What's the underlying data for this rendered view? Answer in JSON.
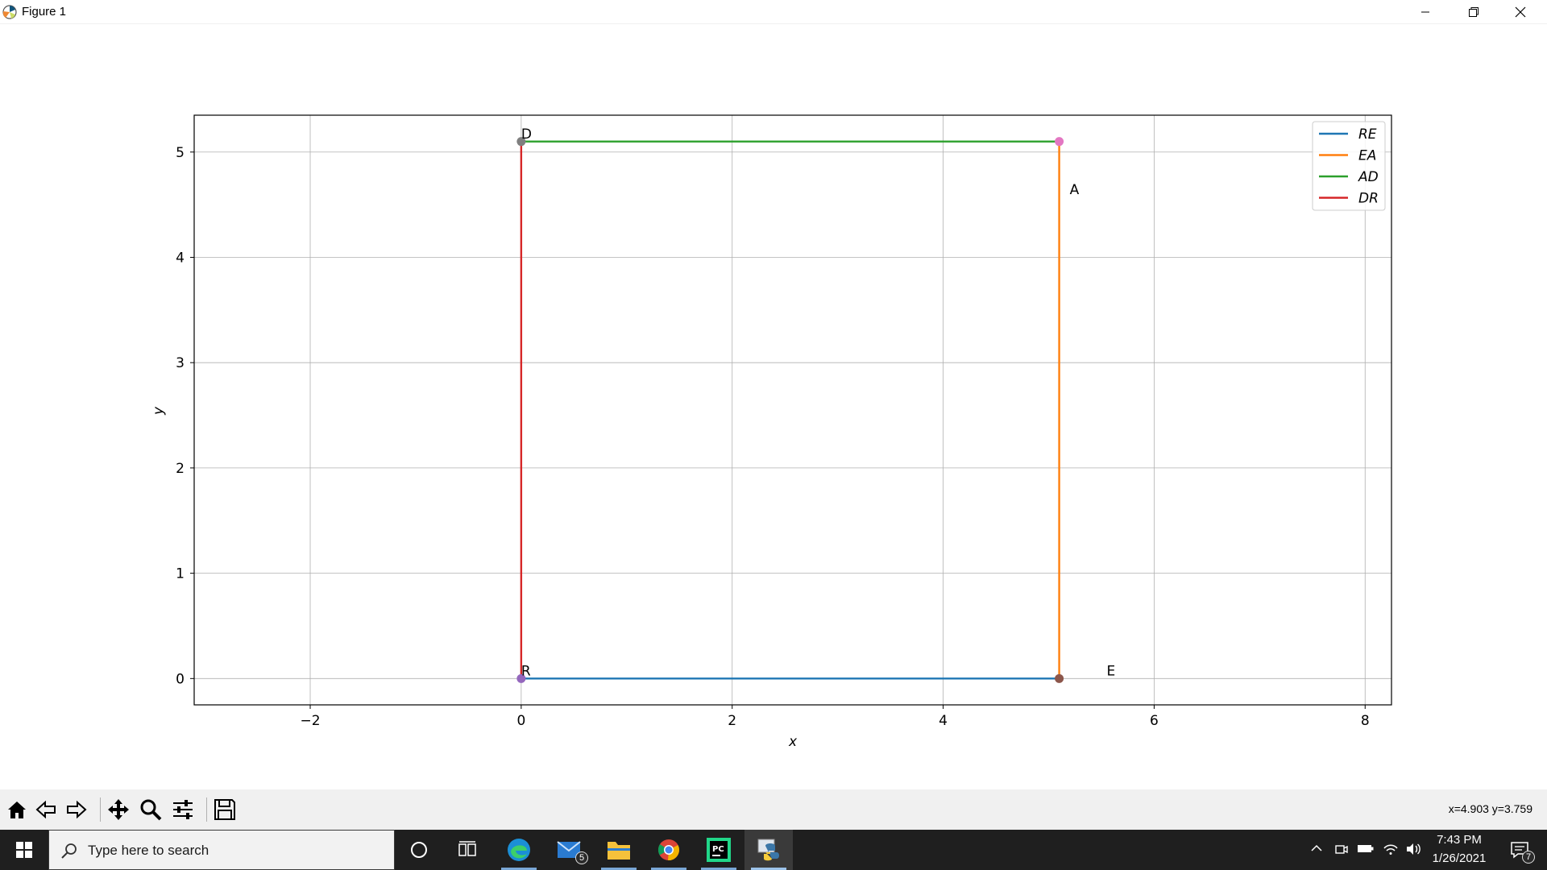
{
  "window": {
    "title": "Figure 1",
    "title_icon": "matplotlib-logo-icon",
    "controls": [
      "minimize-icon",
      "restore-icon",
      "close-icon"
    ]
  },
  "chart_data": {
    "type": "line",
    "xlabel": "x",
    "ylabel": "y",
    "xlim": [
      -3.1,
      8.25
    ],
    "ylim": [
      -0.25,
      5.35
    ],
    "xticks": [
      -2,
      0,
      2,
      4,
      6,
      8
    ],
    "yticks": [
      0,
      1,
      2,
      3,
      4,
      5
    ],
    "grid": true,
    "legend_position": "top-right",
    "series": [
      {
        "name": "RE",
        "color": "#1f77b4",
        "x": [
          0,
          5.1
        ],
        "y": [
          0,
          0
        ]
      },
      {
        "name": "EA",
        "color": "#ff7f0e",
        "x": [
          5.1,
          5.1
        ],
        "y": [
          0,
          5.1
        ]
      },
      {
        "name": "AD",
        "color": "#2ca02c",
        "x": [
          5.1,
          0
        ],
        "y": [
          5.1,
          5.1
        ]
      },
      {
        "name": "DR",
        "color": "#d62728",
        "x": [
          0,
          0
        ],
        "y": [
          5.1,
          0
        ]
      }
    ],
    "points": [
      {
        "x": 0,
        "y": 0,
        "color": "#9467bd"
      },
      {
        "x": 5.1,
        "y": 0,
        "color": "#8c564b"
      },
      {
        "x": 5.1,
        "y": 5.1,
        "color": "#e377c2"
      },
      {
        "x": 0,
        "y": 5.1,
        "color": "#7f7f7f"
      }
    ],
    "annotations": [
      {
        "text": "R",
        "x": 0.0,
        "y": 0.03
      },
      {
        "text": "E",
        "x": 5.55,
        "y": 0.03
      },
      {
        "text": "A",
        "x": 5.2,
        "y": 4.6
      },
      {
        "text": "D",
        "x": 0.0,
        "y": 5.13
      }
    ]
  },
  "toolbar": {
    "buttons": [
      "home-icon",
      "back-icon",
      "forward-icon",
      "pan-icon",
      "zoom-icon",
      "configure-subplots-icon",
      "save-icon"
    ],
    "coords": "x=4.903 y=3.759"
  },
  "taskbar": {
    "search_placeholder": "Type here to search",
    "apps": [
      "cortana-icon",
      "task-view-icon",
      "edge-icon",
      "mail-icon",
      "file-explorer-icon",
      "chrome-icon",
      "pycharm-icon",
      "python-icon"
    ],
    "mail_badge": "5",
    "time": "7:43 PM",
    "date": "1/26/2021",
    "notification_badge": "7"
  }
}
